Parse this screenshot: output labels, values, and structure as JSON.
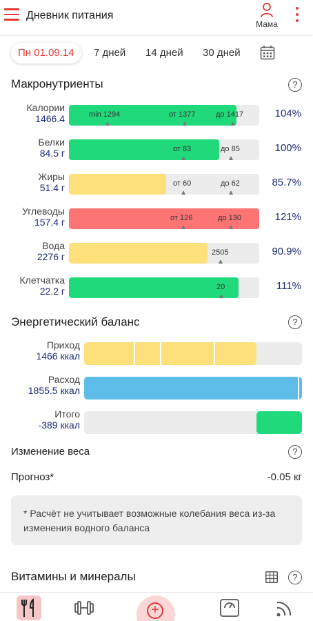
{
  "header": {
    "title": "Дневник питания",
    "profile_label": "Мама"
  },
  "periods": [
    {
      "label": "Пн 01.09.14",
      "active": true
    },
    {
      "label": "7 дней"
    },
    {
      "label": "14 дней"
    },
    {
      "label": "30 дней"
    }
  ],
  "macros": {
    "title": "Макронутриенты",
    "help": "?",
    "rows": [
      {
        "name": "Калории",
        "value": "1466.4",
        "fill_fraction": 0.88,
        "color": "#1fd97a",
        "marks": [
          "min 1294",
          "от 1377",
          "до 1417"
        ],
        "percent": "104%"
      },
      {
        "name": "Белки",
        "value": "84.5 г",
        "fill_fraction": 0.79,
        "color": "#1fd97a",
        "marks": [
          "от 83",
          "до 85"
        ],
        "percent": "100%"
      },
      {
        "name": "Жиры",
        "value": "51.4 г",
        "fill_fraction": 0.51,
        "color": "#fde07a",
        "marks": [
          "от 60",
          "до 62"
        ],
        "percent": "85.7%"
      },
      {
        "name": "Углеводы",
        "value": "157.4 г",
        "fill_fraction": 1.0,
        "color": "#fd7474",
        "marks": [
          "от 126",
          "до 130"
        ],
        "percent": "121%"
      },
      {
        "name": "Вода",
        "value": "2276 г",
        "fill_fraction": 0.73,
        "color": "#fde07a",
        "marks": [
          "2505"
        ],
        "percent": "90.9%"
      },
      {
        "name": "Клетчатка",
        "value": "22.2 г",
        "fill_fraction": 0.89,
        "color": "#1fd97a",
        "marks": [
          "20"
        ],
        "percent": "111%"
      }
    ]
  },
  "energy": {
    "title": "Энергетический баланс",
    "help": "?",
    "rows": [
      {
        "name": "Приход",
        "value": "1466 ккал",
        "fill_fraction": 0.79,
        "color": "#fde07a"
      },
      {
        "name": "Расход",
        "value": "1855.5 ккал",
        "fill_fraction": 1.0,
        "color": "#5ebce8"
      },
      {
        "name": "Итого",
        "value": "-389 ккал",
        "fill_fraction": 0.21,
        "color": "#1fd97a"
      }
    ]
  },
  "weight": {
    "title": "Изменение веса",
    "help": "?",
    "forecast_label": "Прогноз*",
    "forecast_value": "-0.05 кг",
    "note": "* Расчёт не учитывает возможные колебания веса из-за изменения водного баланса"
  },
  "vitamins": {
    "title": "Витамины и минералы",
    "help": "?"
  },
  "bottom_nav": {
    "icons": [
      "food-icon",
      "dumbbell-icon",
      "add-icon",
      "scale-icon",
      "feed-icon"
    ]
  }
}
